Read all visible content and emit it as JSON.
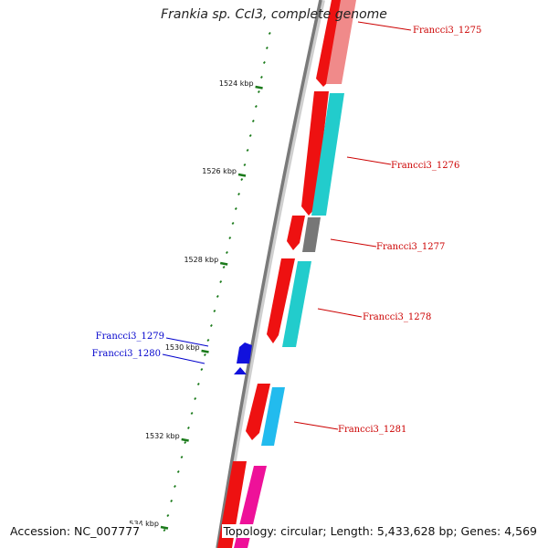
{
  "title": "Frankia sp. CcI3, complete genome",
  "footer": {
    "accession": "Accession: NC_007777",
    "summary": "Topology: circular; Length: 5,433,628 bp; Genes: 4,569"
  },
  "scale_ticks": [
    "1524 kbp",
    "1526 kbp",
    "1528 kbp",
    "1530 kbp",
    "1532 kbp",
    "534 kbp"
  ],
  "colors": {
    "backbone": "#888888",
    "tick": "#1a7a1a",
    "forward_label": "#cc0000",
    "reverse_label": "#0000cc",
    "cds_red": "#ee1111",
    "pink": "#f08080",
    "cyan": "#22cccc",
    "gray": "#777777",
    "blue": "#1111dd",
    "sky": "#22bbee",
    "magenta": "#ee1199"
  },
  "genes": [
    {
      "label": "Francci3_1275",
      "strand": "forward",
      "color": "#cc0000"
    },
    {
      "label": "Francci3_1276",
      "strand": "forward",
      "color": "#cc0000"
    },
    {
      "label": "Francci3_1277",
      "strand": "forward",
      "color": "#cc0000"
    },
    {
      "label": "Francci3_1278",
      "strand": "forward",
      "color": "#cc0000"
    },
    {
      "label": "Francci3_1279",
      "strand": "reverse",
      "color": "#0000cc"
    },
    {
      "label": "Francci3_1280",
      "strand": "reverse",
      "color": "#0000cc"
    },
    {
      "label": "Francci3_1281",
      "strand": "forward",
      "color": "#cc0000"
    }
  ]
}
